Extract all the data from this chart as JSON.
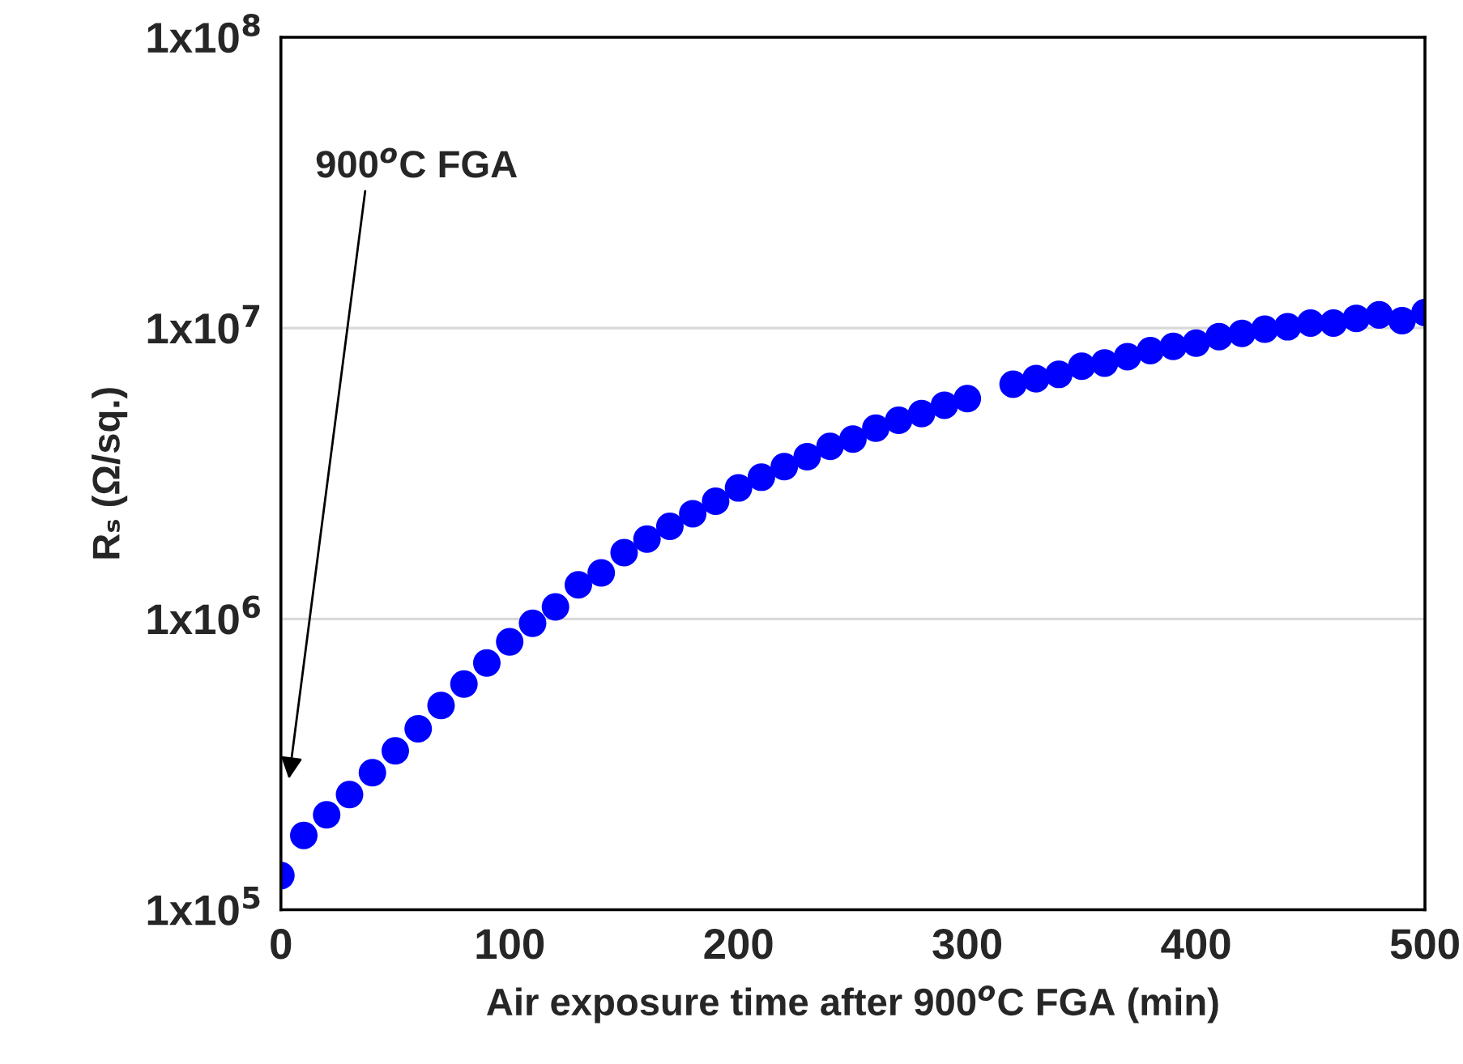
{
  "chart_data": {
    "type": "scatter",
    "xlabel": "Air exposure time after 900$^{o}$C FGA (min)",
    "ylabel": "Rₛ (Ω/sq.)",
    "x": [
      0,
      10,
      20,
      30,
      40,
      50,
      60,
      70,
      80,
      90,
      100,
      110,
      120,
      130,
      140,
      150,
      160,
      170,
      180,
      190,
      200,
      210,
      220,
      230,
      240,
      250,
      260,
      270,
      280,
      290,
      300,
      310,
      320,
      330,
      340,
      350,
      360,
      370,
      380,
      390,
      400,
      410,
      420,
      430,
      440,
      450,
      460,
      470,
      480,
      490,
      500
    ],
    "series": [
      {
        "color": "#0000ff",
        "values": [
          131000,
          180000,
          212000,
          249000,
          296000,
          352000,
          419000,
          504000,
          597000,
          705000,
          834000,
          966000,
          1100000,
          1310000,
          1440000,
          1690000,
          1880000,
          2080000,
          2300000,
          2540000,
          2820000,
          3070000,
          3340000,
          3610000,
          3920000,
          4150000,
          4530000,
          4820000,
          5080000,
          5430000,
          5720000,
          null,
          6410000,
          6700000,
          6930000,
          7390000,
          7580000,
          7970000,
          8360000,
          8650000,
          8880000,
          9340000,
          9590000,
          9910000,
          10100000,
          10400000,
          10400000,
          10800000,
          11100000,
          10600000,
          11300000
        ]
      }
    ],
    "log": "y",
    "xlim": [
      0,
      500
    ],
    "xticks": [
      0,
      100,
      200,
      300,
      400,
      500
    ],
    "ylim": [
      100000,
      100000000
    ],
    "yticks": [
      {
        "value": 100000,
        "label": "1x10$^{5}$"
      },
      {
        "value": 1000000,
        "label": "1x10$^{6}$"
      },
      {
        "value": 10000000,
        "label": "1x10$^{7}$"
      },
      {
        "value": 100000000,
        "label": "1x10$^{8}$"
      }
    ],
    "grid": "y",
    "marker": "circle",
    "annotations": [
      "900$^{o}$C FGA"
    ]
  }
}
